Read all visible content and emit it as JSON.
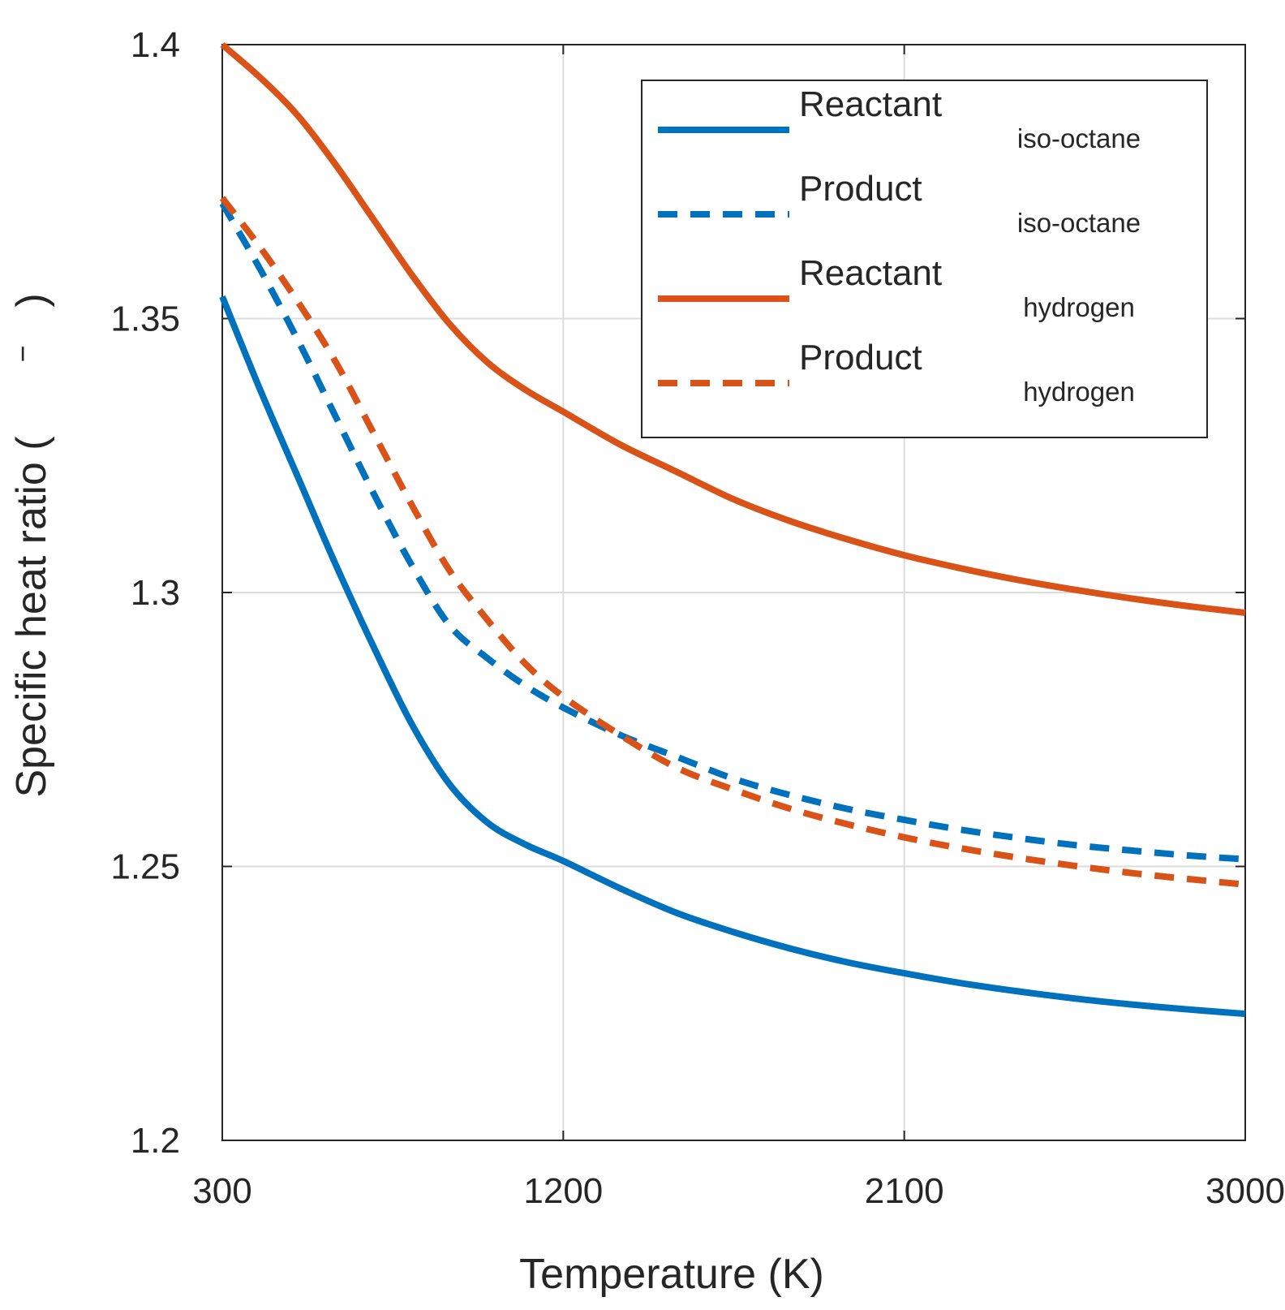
{
  "chart_data": {
    "type": "line",
    "title": "",
    "xlabel": "Temperature (K)",
    "ylabel_main": "Specific heat ratio (",
    "ylabel_unit": "−",
    "ylabel_close": ")",
    "xlim": [
      300,
      3000
    ],
    "ylim": [
      1.2,
      1.4
    ],
    "xticks": [
      300,
      1200,
      2100,
      3000
    ],
    "xtick_labels": [
      "300",
      "1200",
      "2100",
      "3000"
    ],
    "yticks": [
      1.2,
      1.25,
      1.3,
      1.35,
      1.4
    ],
    "ytick_labels": [
      "1.2",
      "1.25",
      "1.3",
      "1.35",
      "1.4"
    ],
    "grid": true,
    "legend_position": "top-right",
    "series": [
      {
        "name": "Reactant",
        "subscript": "iso-octane",
        "color": "#0072BD",
        "style": "solid",
        "x": [
          300,
          400,
          500,
          600,
          700,
          800,
          900,
          1000,
          1100,
          1200,
          1350,
          1500,
          1650,
          1800,
          1950,
          2100,
          2250,
          2400,
          2550,
          2700,
          2850,
          3000
        ],
        "y": [
          1.354,
          1.337,
          1.321,
          1.305,
          1.29,
          1.276,
          1.265,
          1.258,
          1.254,
          1.251,
          1.246,
          1.2415,
          1.238,
          1.235,
          1.2325,
          1.2305,
          1.2287,
          1.2272,
          1.2259,
          1.2248,
          1.2239,
          1.2231
        ]
      },
      {
        "name": "Product",
        "subscript": "iso-octane",
        "color": "#0072BD",
        "style": "dashed",
        "x": [
          300,
          400,
          500,
          600,
          700,
          800,
          900,
          1000,
          1100,
          1200,
          1350,
          1500,
          1650,
          1800,
          1950,
          2100,
          2250,
          2400,
          2550,
          2700,
          2850,
          3000
        ],
        "y": [
          1.371,
          1.359,
          1.346,
          1.332,
          1.318,
          1.305,
          1.294,
          1.288,
          1.283,
          1.279,
          1.274,
          1.27,
          1.266,
          1.263,
          1.2605,
          1.2585,
          1.2567,
          1.2552,
          1.2539,
          1.2529,
          1.252,
          1.2513
        ]
      },
      {
        "name": "Reactant",
        "subscript": "hydrogen",
        "color": "#D95319",
        "style": "solid",
        "x": [
          300,
          400,
          500,
          600,
          700,
          800,
          900,
          1000,
          1100,
          1200,
          1350,
          1500,
          1650,
          1800,
          1950,
          2100,
          2250,
          2400,
          2550,
          2700,
          2850,
          3000
        ],
        "y": [
          1.4,
          1.394,
          1.387,
          1.378,
          1.368,
          1.358,
          1.349,
          1.342,
          1.337,
          1.333,
          1.327,
          1.322,
          1.317,
          1.313,
          1.3097,
          1.3068,
          1.3044,
          1.3023,
          1.3005,
          1.2989,
          1.2975,
          1.2963
        ]
      },
      {
        "name": "Product",
        "subscript": "hydrogen",
        "color": "#D95319",
        "style": "dashed",
        "x": [
          300,
          400,
          500,
          600,
          700,
          800,
          900,
          1000,
          1100,
          1200,
          1350,
          1500,
          1650,
          1800,
          1950,
          2100,
          2250,
          2400,
          2550,
          2700,
          2850,
          3000
        ],
        "y": [
          1.372,
          1.363,
          1.353,
          1.342,
          1.329,
          1.316,
          1.304,
          1.295,
          1.287,
          1.281,
          1.274,
          1.268,
          1.264,
          1.2605,
          1.2577,
          1.2553,
          1.2533,
          1.2516,
          1.2501,
          1.2488,
          1.2477,
          1.2467
        ]
      }
    ]
  }
}
